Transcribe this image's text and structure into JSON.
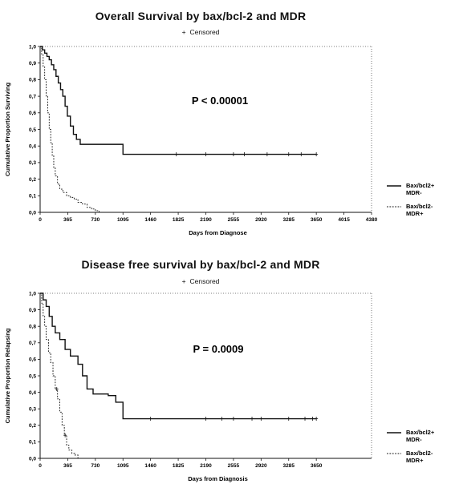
{
  "chart_data": [
    {
      "type": "line",
      "title": "Overall Survival by bax/bcl-2 and MDR",
      "censor_note": "Censored",
      "censor_marker": "+",
      "xlabel": "Days from Diagnose",
      "ylabel": "Cumulative Proportion Surviving",
      "xlim": [
        0,
        4380
      ],
      "ylim": [
        0,
        1
      ],
      "xticks": [
        0,
        365,
        730,
        1095,
        1460,
        1825,
        2190,
        2555,
        2920,
        3285,
        3650,
        4015,
        4380
      ],
      "xtick_labels": [
        "0",
        "365",
        "730",
        "1095",
        "1460",
        "1825",
        "2190",
        "2555",
        "2920",
        "3285",
        "3650",
        "4015",
        "4380"
      ],
      "yticks": [
        0,
        0.1,
        0.2,
        0.3,
        0.4,
        0.5,
        0.6,
        0.7,
        0.8,
        0.9,
        1.0
      ],
      "ytick_labels": [
        "0,0",
        "0,1",
        "0,2",
        "0,3",
        "0,4",
        "0,5",
        "0,6",
        "0,7",
        "0,8",
        "0,9",
        "1,0"
      ],
      "annotation": "P < 0.00001",
      "legend_position": "right",
      "series": [
        {
          "name": "Bax/bcl2+ MDR-",
          "style": "solid",
          "points": [
            [
              0,
              1.0
            ],
            [
              30,
              0.98
            ],
            [
              60,
              0.96
            ],
            [
              90,
              0.94
            ],
            [
              120,
              0.92
            ],
            [
              150,
              0.89
            ],
            [
              180,
              0.86
            ],
            [
              210,
              0.82
            ],
            [
              240,
              0.78
            ],
            [
              270,
              0.74
            ],
            [
              300,
              0.7
            ],
            [
              330,
              0.64
            ],
            [
              360,
              0.58
            ],
            [
              400,
              0.52
            ],
            [
              440,
              0.47
            ],
            [
              480,
              0.44
            ],
            [
              530,
              0.41
            ],
            [
              1095,
              0.35
            ],
            [
              3650,
              0.35
            ]
          ],
          "censored": [
            1800,
            2190,
            2555,
            2700,
            3000,
            3285,
            3450,
            3650
          ]
        },
        {
          "name": "Bax/bcl2- MDR+",
          "style": "dashed",
          "points": [
            [
              0,
              1.0
            ],
            [
              20,
              0.95
            ],
            [
              40,
              0.88
            ],
            [
              60,
              0.8
            ],
            [
              80,
              0.7
            ],
            [
              100,
              0.6
            ],
            [
              120,
              0.5
            ],
            [
              140,
              0.42
            ],
            [
              160,
              0.34
            ],
            [
              180,
              0.27
            ],
            [
              200,
              0.22
            ],
            [
              230,
              0.17
            ],
            [
              260,
              0.14
            ],
            [
              300,
              0.12
            ],
            [
              350,
              0.1
            ],
            [
              400,
              0.09
            ],
            [
              450,
              0.08
            ],
            [
              500,
              0.06
            ],
            [
              560,
              0.05
            ],
            [
              620,
              0.03
            ],
            [
              680,
              0.02
            ],
            [
              730,
              0.01
            ],
            [
              780,
              0.0
            ]
          ],
          "censored": []
        }
      ]
    },
    {
      "type": "line",
      "title": "Disease free survival by bax/bcl-2 and MDR",
      "censor_note": "Censored",
      "censor_marker": "+",
      "xlabel": "Days from Diagnosis",
      "ylabel": "Cumulative Proportion Relapsing",
      "xlim": [
        0,
        4380
      ],
      "ylim": [
        0,
        1
      ],
      "xticks": [
        0,
        365,
        730,
        1095,
        1460,
        1825,
        2190,
        2555,
        2920,
        3285,
        3650
      ],
      "xtick_labels": [
        "0",
        "365",
        "730",
        "1095",
        "1460",
        "1825",
        "2190",
        "2555",
        "2920",
        "3285",
        "3650"
      ],
      "yticks": [
        0,
        0.1,
        0.2,
        0.3,
        0.4,
        0.5,
        0.6,
        0.7,
        0.8,
        0.9,
        1.0
      ],
      "ytick_labels": [
        "0,0",
        "0,1",
        "0,2",
        "0,3",
        "0,4",
        "0,5",
        "0,6",
        "0,7",
        "0,8",
        "0,9",
        "1,0"
      ],
      "annotation": "P = 0.0009",
      "legend_position": "right",
      "series": [
        {
          "name": "Bax/bcl2+ MDR-",
          "style": "solid",
          "points": [
            [
              0,
              1.0
            ],
            [
              40,
              0.96
            ],
            [
              80,
              0.92
            ],
            [
              120,
              0.86
            ],
            [
              160,
              0.8
            ],
            [
              200,
              0.76
            ],
            [
              260,
              0.72
            ],
            [
              330,
              0.66
            ],
            [
              400,
              0.62
            ],
            [
              500,
              0.57
            ],
            [
              560,
              0.5
            ],
            [
              620,
              0.42
            ],
            [
              700,
              0.39
            ],
            [
              900,
              0.38
            ],
            [
              1000,
              0.34
            ],
            [
              1095,
              0.24
            ],
            [
              3650,
              0.24
            ]
          ],
          "censored": [
            1460,
            2190,
            2400,
            2555,
            2800,
            2920,
            3285,
            3500,
            3600,
            3650
          ]
        },
        {
          "name": "Bax/bcl2- MDR+",
          "style": "dashed",
          "points": [
            [
              0,
              1.0
            ],
            [
              20,
              0.94
            ],
            [
              40,
              0.86
            ],
            [
              60,
              0.8
            ],
            [
              80,
              0.72
            ],
            [
              110,
              0.64
            ],
            [
              140,
              0.58
            ],
            [
              170,
              0.5
            ],
            [
              200,
              0.42
            ],
            [
              230,
              0.36
            ],
            [
              260,
              0.28
            ],
            [
              290,
              0.2
            ],
            [
              320,
              0.14
            ],
            [
              350,
              0.08
            ],
            [
              380,
              0.05
            ],
            [
              420,
              0.03
            ],
            [
              460,
              0.02
            ],
            [
              500,
              0.0
            ]
          ],
          "censored": [
            220,
            330
          ]
        }
      ]
    }
  ]
}
